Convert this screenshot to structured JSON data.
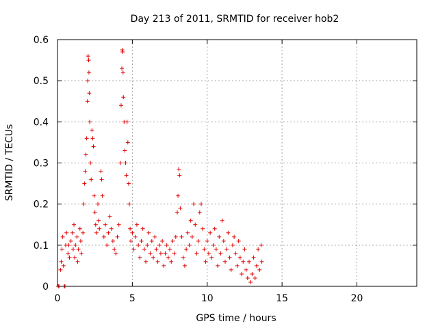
{
  "chart_data": {
    "type": "scatter",
    "title": "Day 213 of 2011, SRMTID for receiver hob2",
    "xlabel": "GPS time / hours",
    "ylabel": "SRMTID / TECUs",
    "xlim": [
      0,
      24
    ],
    "ylim": [
      0,
      0.6
    ],
    "x_ticks": [
      0,
      5,
      10,
      15,
      20
    ],
    "x_tick_labels": [
      "0",
      "5",
      "10",
      "15",
      "20"
    ],
    "y_ticks": [
      0,
      0.1,
      0.2,
      0.3,
      0.4,
      0.5,
      0.6
    ],
    "y_tick_labels": [
      "0",
      "0.1",
      "0.2",
      "0.3",
      "0.4",
      "0.5",
      "0.6"
    ],
    "grid": true,
    "marker": "+",
    "color": "#e00000",
    "series": [
      {
        "name": "SRMTID",
        "points": [
          [
            0.05,
            0.0
          ],
          [
            0.1,
            0.0
          ],
          [
            0.45,
            0.0
          ],
          [
            0.5,
            0.0
          ],
          [
            0.2,
            0.04
          ],
          [
            0.25,
            0.06
          ],
          [
            0.3,
            0.09
          ],
          [
            0.35,
            0.12
          ],
          [
            0.4,
            0.05
          ],
          [
            0.55,
            0.1
          ],
          [
            0.6,
            0.13
          ],
          [
            0.7,
            0.08
          ],
          [
            0.75,
            0.1
          ],
          [
            0.8,
            0.07
          ],
          [
            0.9,
            0.11
          ],
          [
            1.0,
            0.13
          ],
          [
            1.05,
            0.09
          ],
          [
            1.1,
            0.15
          ],
          [
            1.15,
            0.07
          ],
          [
            1.2,
            0.1
          ],
          [
            1.3,
            0.12
          ],
          [
            1.35,
            0.06
          ],
          [
            1.4,
            0.09
          ],
          [
            1.5,
            0.14
          ],
          [
            1.55,
            0.11
          ],
          [
            1.6,
            0.08
          ],
          [
            1.7,
            0.13
          ],
          [
            1.75,
            0.2
          ],
          [
            1.8,
            0.25
          ],
          [
            1.85,
            0.28
          ],
          [
            1.9,
            0.32
          ],
          [
            1.95,
            0.36
          ],
          [
            2.0,
            0.45
          ],
          [
            2.02,
            0.5
          ],
          [
            2.05,
            0.56
          ],
          [
            2.08,
            0.55
          ],
          [
            2.1,
            0.52
          ],
          [
            2.12,
            0.47
          ],
          [
            2.15,
            0.4
          ],
          [
            2.2,
            0.3
          ],
          [
            2.25,
            0.26
          ],
          [
            2.3,
            0.38
          ],
          [
            2.35,
            0.36
          ],
          [
            2.4,
            0.34
          ],
          [
            2.45,
            0.22
          ],
          [
            2.5,
            0.18
          ],
          [
            2.55,
            0.15
          ],
          [
            2.6,
            0.13
          ],
          [
            2.7,
            0.2
          ],
          [
            2.75,
            0.16
          ],
          [
            2.8,
            0.14
          ],
          [
            2.9,
            0.28
          ],
          [
            2.95,
            0.26
          ],
          [
            3.0,
            0.22
          ],
          [
            3.1,
            0.12
          ],
          [
            3.2,
            0.15
          ],
          [
            3.3,
            0.1
          ],
          [
            3.4,
            0.13
          ],
          [
            3.5,
            0.17
          ],
          [
            3.6,
            0.14
          ],
          [
            3.7,
            0.11
          ],
          [
            3.8,
            0.09
          ],
          [
            3.9,
            0.08
          ],
          [
            4.0,
            0.12
          ],
          [
            4.1,
            0.15
          ],
          [
            4.2,
            0.3
          ],
          [
            4.25,
            0.44
          ],
          [
            4.3,
            0.53
          ],
          [
            4.32,
            0.575
          ],
          [
            4.35,
            0.57
          ],
          [
            4.38,
            0.52
          ],
          [
            4.4,
            0.46
          ],
          [
            4.45,
            0.4
          ],
          [
            4.5,
            0.33
          ],
          [
            4.55,
            0.3
          ],
          [
            4.6,
            0.27
          ],
          [
            4.65,
            0.4
          ],
          [
            4.7,
            0.35
          ],
          [
            4.75,
            0.25
          ],
          [
            4.8,
            0.2
          ],
          [
            4.85,
            0.14
          ],
          [
            4.9,
            0.11
          ],
          [
            5.0,
            0.13
          ],
          [
            5.1,
            0.09
          ],
          [
            5.2,
            0.12
          ],
          [
            5.3,
            0.15
          ],
          [
            5.4,
            0.1
          ],
          [
            5.5,
            0.07
          ],
          [
            5.6,
            0.11
          ],
          [
            5.7,
            0.14
          ],
          [
            5.8,
            0.09
          ],
          [
            5.9,
            0.06
          ],
          [
            6.0,
            0.1
          ],
          [
            6.1,
            0.13
          ],
          [
            6.2,
            0.08
          ],
          [
            6.3,
            0.11
          ],
          [
            6.4,
            0.07
          ],
          [
            6.5,
            0.12
          ],
          [
            6.6,
            0.09
          ],
          [
            6.7,
            0.06
          ],
          [
            6.8,
            0.1
          ],
          [
            6.9,
            0.08
          ],
          [
            7.0,
            0.11
          ],
          [
            7.1,
            0.05
          ],
          [
            7.2,
            0.08
          ],
          [
            7.3,
            0.1
          ],
          [
            7.4,
            0.07
          ],
          [
            7.5,
            0.09
          ],
          [
            7.6,
            0.06
          ],
          [
            7.7,
            0.11
          ],
          [
            7.8,
            0.08
          ],
          [
            7.9,
            0.12
          ],
          [
            8.0,
            0.18
          ],
          [
            8.05,
            0.22
          ],
          [
            8.1,
            0.285
          ],
          [
            8.15,
            0.27
          ],
          [
            8.2,
            0.19
          ],
          [
            8.3,
            0.12
          ],
          [
            8.4,
            0.07
          ],
          [
            8.5,
            0.05
          ],
          [
            8.6,
            0.09
          ],
          [
            8.7,
            0.13
          ],
          [
            8.8,
            0.1
          ],
          [
            8.9,
            0.16
          ],
          [
            9.0,
            0.12
          ],
          [
            9.1,
            0.2
          ],
          [
            9.2,
            0.15
          ],
          [
            9.3,
            0.08
          ],
          [
            9.4,
            0.11
          ],
          [
            9.5,
            0.18
          ],
          [
            9.6,
            0.2
          ],
          [
            9.7,
            0.14
          ],
          [
            9.8,
            0.09
          ],
          [
            9.9,
            0.06
          ],
          [
            10.0,
            0.11
          ],
          [
            10.1,
            0.08
          ],
          [
            10.2,
            0.13
          ],
          [
            10.3,
            0.07
          ],
          [
            10.4,
            0.1
          ],
          [
            10.5,
            0.14
          ],
          [
            10.6,
            0.09
          ],
          [
            10.7,
            0.05
          ],
          [
            10.8,
            0.12
          ],
          [
            10.9,
            0.08
          ],
          [
            11.0,
            0.16
          ],
          [
            11.1,
            0.11
          ],
          [
            11.2,
            0.06
          ],
          [
            11.3,
            0.09
          ],
          [
            11.4,
            0.13
          ],
          [
            11.5,
            0.07
          ],
          [
            11.6,
            0.04
          ],
          [
            11.7,
            0.1
          ],
          [
            11.8,
            0.12
          ],
          [
            11.9,
            0.08
          ],
          [
            12.0,
            0.05
          ],
          [
            12.1,
            0.11
          ],
          [
            12.2,
            0.07
          ],
          [
            12.3,
            0.03
          ],
          [
            12.4,
            0.06
          ],
          [
            12.5,
            0.09
          ],
          [
            12.6,
            0.04
          ],
          [
            12.7,
            0.02
          ],
          [
            12.8,
            0.06
          ],
          [
            12.9,
            0.01
          ],
          [
            13.0,
            0.03
          ],
          [
            13.1,
            0.07
          ],
          [
            13.2,
            0.02
          ],
          [
            13.3,
            0.05
          ],
          [
            13.4,
            0.09
          ],
          [
            13.5,
            0.04
          ],
          [
            13.6,
            0.1
          ],
          [
            13.65,
            0.06
          ]
        ]
      }
    ]
  }
}
